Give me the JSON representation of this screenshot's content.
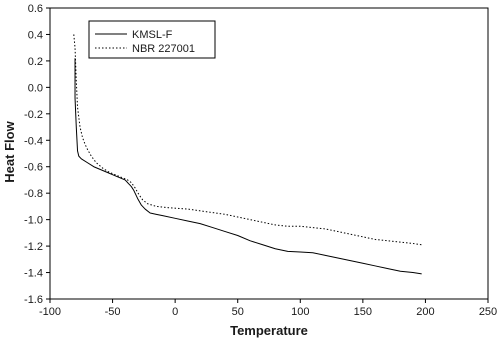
{
  "chart_data": {
    "type": "line",
    "xlabel": "Temperature",
    "ylabel": "Heat Flow",
    "xlim": [
      -100,
      250
    ],
    "ylim": [
      -1.6,
      0.6
    ],
    "xticks": [
      -100,
      -50,
      0,
      50,
      100,
      150,
      200,
      250
    ],
    "yticks": [
      0.6,
      0.4,
      0.2,
      0.0,
      -0.2,
      -0.4,
      -0.6,
      -0.8,
      -1.0,
      -1.2,
      -1.4,
      -1.6
    ],
    "xtick_labels": [
      "-100",
      "-50",
      "0",
      "50",
      "100",
      "150",
      "200",
      "250"
    ],
    "ytick_labels": [
      "0.6",
      "0.4",
      "0.2",
      "0.0",
      "-0.2",
      "-0.4",
      "-0.6",
      "-0.8",
      "-1.0",
      "-1.2",
      "-1.4",
      "-1.6"
    ],
    "grid": false,
    "legend_position": "top-left",
    "series": [
      {
        "name": "KMSL-F",
        "style": "solid",
        "color": "#000000",
        "points": [
          [
            -80,
            0.22
          ],
          [
            -80,
            -0.08
          ],
          [
            -79,
            -0.3
          ],
          [
            -78,
            -0.48
          ],
          [
            -77,
            -0.52
          ],
          [
            -75,
            -0.54
          ],
          [
            -70,
            -0.57
          ],
          [
            -65,
            -0.6
          ],
          [
            -60,
            -0.62
          ],
          [
            -55,
            -0.64
          ],
          [
            -50,
            -0.66
          ],
          [
            -45,
            -0.68
          ],
          [
            -40,
            -0.7
          ],
          [
            -37,
            -0.73
          ],
          [
            -35,
            -0.75
          ],
          [
            -33,
            -0.78
          ],
          [
            -30,
            -0.84
          ],
          [
            -27,
            -0.89
          ],
          [
            -24,
            -0.92
          ],
          [
            -20,
            -0.95
          ],
          [
            -15,
            -0.96
          ],
          [
            -10,
            -0.97
          ],
          [
            0,
            -0.99
          ],
          [
            10,
            -1.01
          ],
          [
            20,
            -1.03
          ],
          [
            30,
            -1.06
          ],
          [
            40,
            -1.09
          ],
          [
            50,
            -1.12
          ],
          [
            60,
            -1.16
          ],
          [
            70,
            -1.19
          ],
          [
            80,
            -1.22
          ],
          [
            90,
            -1.24
          ],
          [
            100,
            -1.245
          ],
          [
            110,
            -1.25
          ],
          [
            120,
            -1.27
          ],
          [
            130,
            -1.29
          ],
          [
            140,
            -1.31
          ],
          [
            150,
            -1.33
          ],
          [
            160,
            -1.35
          ],
          [
            170,
            -1.37
          ],
          [
            180,
            -1.39
          ],
          [
            190,
            -1.4
          ],
          [
            197,
            -1.41
          ]
        ]
      },
      {
        "name": "NBR 227001",
        "style": "dotted",
        "color": "#000000",
        "points": [
          [
            -81,
            0.4
          ],
          [
            -80,
            0.3
          ],
          [
            -79,
            0.05
          ],
          [
            -78,
            -0.15
          ],
          [
            -76,
            -0.3
          ],
          [
            -74,
            -0.38
          ],
          [
            -72,
            -0.43
          ],
          [
            -70,
            -0.47
          ],
          [
            -67,
            -0.52
          ],
          [
            -63,
            -0.57
          ],
          [
            -58,
            -0.61
          ],
          [
            -53,
            -0.64
          ],
          [
            -48,
            -0.66
          ],
          [
            -43,
            -0.68
          ],
          [
            -38,
            -0.7
          ],
          [
            -35,
            -0.72
          ],
          [
            -32,
            -0.76
          ],
          [
            -29,
            -0.81
          ],
          [
            -26,
            -0.85
          ],
          [
            -22,
            -0.88
          ],
          [
            -15,
            -0.9
          ],
          [
            -5,
            -0.91
          ],
          [
            10,
            -0.92
          ],
          [
            25,
            -0.94
          ],
          [
            40,
            -0.96
          ],
          [
            50,
            -0.98
          ],
          [
            60,
            -1.0
          ],
          [
            70,
            -1.02
          ],
          [
            80,
            -1.04
          ],
          [
            90,
            -1.05
          ],
          [
            100,
            -1.05
          ],
          [
            110,
            -1.06
          ],
          [
            120,
            -1.07
          ],
          [
            130,
            -1.09
          ],
          [
            140,
            -1.11
          ],
          [
            150,
            -1.13
          ],
          [
            160,
            -1.15
          ],
          [
            170,
            -1.16
          ],
          [
            180,
            -1.17
          ],
          [
            190,
            -1.18
          ],
          [
            197,
            -1.19
          ]
        ]
      }
    ]
  }
}
